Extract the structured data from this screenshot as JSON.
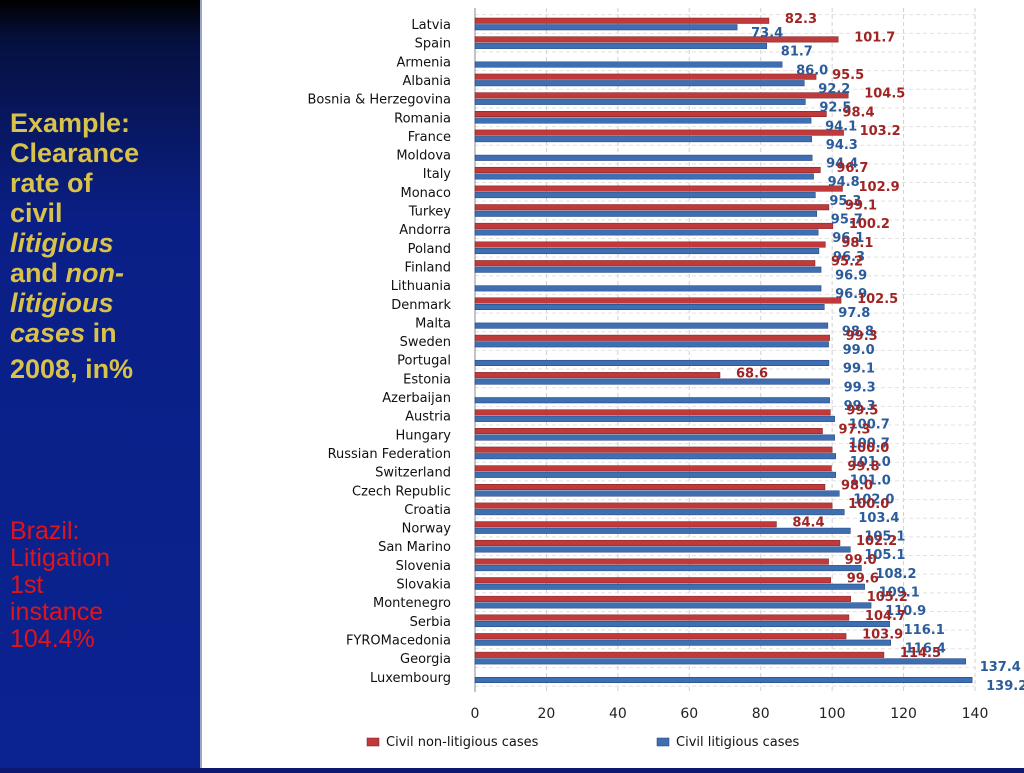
{
  "slide": {
    "title_lines": [
      "Example:",
      "Clearance",
      "rate of",
      "civil"
    ],
    "title_italic_1": "litigious",
    "title_and": "and",
    "title_italic_2": "non-",
    "title_italic_3": "litigious",
    "title_italic_4": "cases",
    "title_in": "in",
    "title_year": "2008, in%",
    "brazil_lines": [
      "Brazil:",
      "Litigation",
      "1st",
      "instance",
      "104.4%"
    ]
  },
  "colors": {
    "non_litigious": "#c0393b",
    "litigious": "#3e6fb3",
    "value_non_litigious": "#a02424",
    "value_litigious": "#2a5c9c"
  },
  "chart_data": {
    "type": "bar",
    "orientation": "horizontal",
    "categories": [
      "Latvia",
      "Spain",
      "Armenia",
      "Albania",
      "Bosnia & Herzegovina",
      "Romania",
      "France",
      "Moldova",
      "Italy",
      "Monaco",
      "Turkey",
      "Andorra",
      "Poland",
      "Finland",
      "Lithuania",
      "Denmark",
      "Malta",
      "Sweden",
      "Portugal",
      "Estonia",
      "Azerbaijan",
      "Austria",
      "Hungary",
      "Russian Federation",
      "Switzerland",
      "Czech Republic",
      "Croatia",
      "Norway",
      "San Marino",
      "Slovenia",
      "Slovakia",
      "Montenegro",
      "Serbia",
      "FYROMacedonia",
      "Georgia",
      "Luxembourg"
    ],
    "series": [
      {
        "name": "Civil non-litigious  cases",
        "values": [
          82.3,
          101.7,
          null,
          95.5,
          104.5,
          98.4,
          103.2,
          null,
          96.7,
          102.9,
          99.1,
          100.2,
          98.1,
          95.2,
          null,
          102.5,
          null,
          99.3,
          null,
          68.6,
          null,
          99.5,
          97.3,
          100.0,
          99.8,
          98.0,
          100.0,
          84.4,
          102.2,
          99.0,
          99.6,
          105.2,
          104.7,
          103.9,
          114.5,
          null
        ]
      },
      {
        "name": "Civil litigious  cases",
        "values": [
          73.4,
          81.7,
          86.0,
          92.2,
          92.5,
          94.1,
          94.3,
          94.4,
          94.8,
          95.3,
          95.7,
          96.1,
          96.3,
          96.9,
          96.9,
          97.8,
          98.8,
          99.0,
          99.1,
          99.3,
          99.3,
          100.7,
          100.7,
          101.0,
          101.0,
          102.0,
          103.4,
          105.1,
          105.1,
          108.2,
          109.1,
          110.9,
          116.1,
          116.4,
          137.4,
          139.2
        ]
      }
    ],
    "xlim": [
      0,
      140
    ],
    "xticks": [
      0,
      20,
      40,
      60,
      80,
      100,
      120,
      140
    ],
    "grid": true,
    "legend_position": "bottom"
  }
}
